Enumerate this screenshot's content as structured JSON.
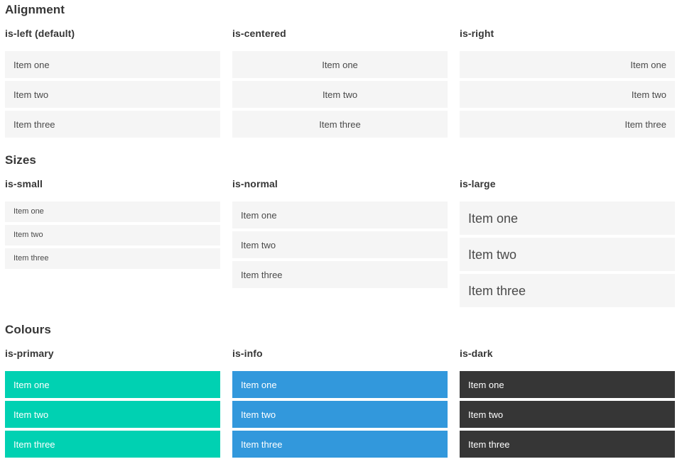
{
  "colors": {
    "primary": "#00d1b2",
    "info": "#3298dc",
    "dark": "#363636",
    "item_bg": "#f5f5f5",
    "item_text": "#4a4a4a",
    "item_text_inverse": "#ffffff",
    "heading_text": "#363636"
  },
  "sections": [
    {
      "title": "Alignment",
      "columns": [
        {
          "heading": "is-left (default)",
          "variant": "left",
          "items": [
            "Item one",
            "Item two",
            "Item three"
          ]
        },
        {
          "heading": "is-centered",
          "variant": "centered",
          "items": [
            "Item one",
            "Item two",
            "Item three"
          ]
        },
        {
          "heading": "is-right",
          "variant": "right",
          "items": [
            "Item one",
            "Item two",
            "Item three"
          ]
        }
      ]
    },
    {
      "title": "Sizes",
      "columns": [
        {
          "heading": "is-small",
          "variant": "small",
          "items": [
            "Item one",
            "Item two",
            "Item three"
          ]
        },
        {
          "heading": "is-normal",
          "variant": "normal",
          "items": [
            "Item one",
            "Item two",
            "Item three"
          ]
        },
        {
          "heading": "is-large",
          "variant": "large",
          "items": [
            "Item one",
            "Item two",
            "Item three"
          ]
        }
      ]
    },
    {
      "title": "Colours",
      "columns": [
        {
          "heading": "is-primary",
          "variant": "primary",
          "items": [
            "Item one",
            "Item two",
            "Item three"
          ]
        },
        {
          "heading": "is-info",
          "variant": "info",
          "items": [
            "Item one",
            "Item two",
            "Item three"
          ]
        },
        {
          "heading": "is-dark",
          "variant": "dark",
          "items": [
            "Item one",
            "Item two",
            "Item three"
          ]
        }
      ]
    }
  ]
}
